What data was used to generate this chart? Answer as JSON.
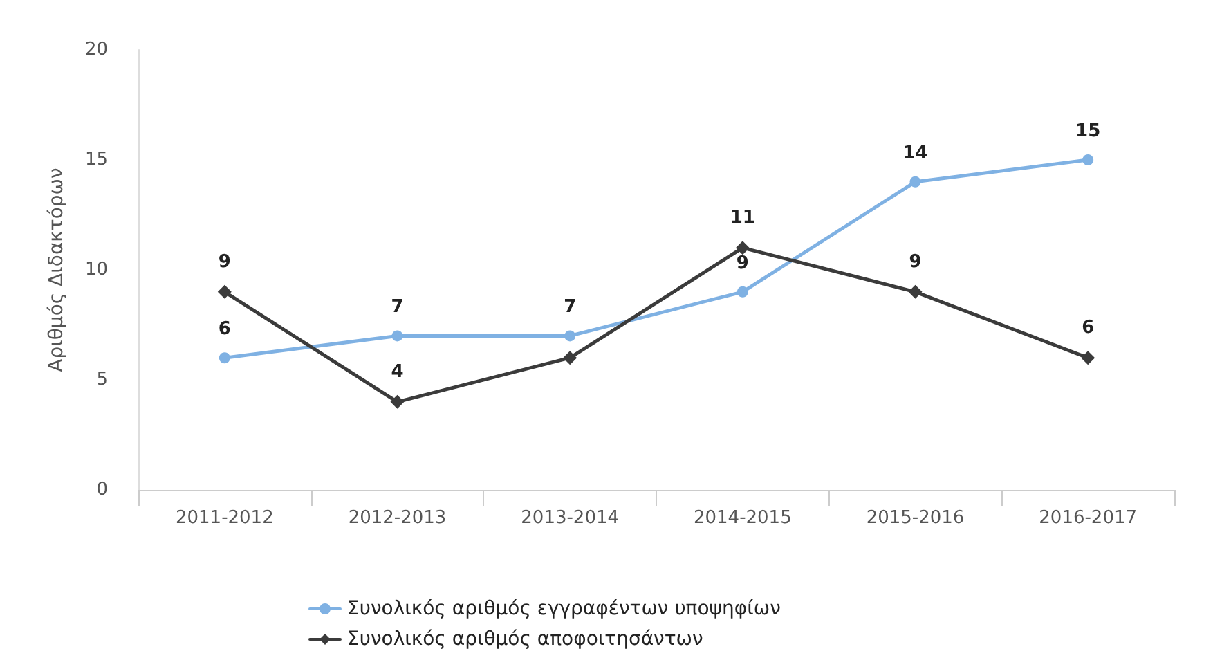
{
  "chart_data": {
    "type": "line",
    "ylabel": "Αριθμός Διδακτόρων",
    "categories": [
      "2011-2012",
      "2012-2013",
      "2013-2014",
      "2014-2015",
      "2015-2016",
      "2016-2017"
    ],
    "series": [
      {
        "name": "Συνολικός αριθμός εγγραφέντων υποψηφίων",
        "color": "#7fb1e3",
        "marker": "circle",
        "values": [
          6,
          7,
          7,
          9,
          14,
          15
        ],
        "value_labels": [
          "6",
          "7",
          "7",
          "9",
          "14",
          "15"
        ]
      },
      {
        "name": "Συνολικός αριθμός αποφοιτησάντων",
        "color": "#3b3b3b",
        "marker": "diamond",
        "values": [
          9,
          4,
          6,
          11,
          9,
          6
        ],
        "value_labels": [
          "9",
          "4",
          null,
          "11",
          "9",
          "6"
        ]
      }
    ],
    "ylim": [
      0,
      20
    ],
    "yticks": [
      0,
      5,
      10,
      15,
      20
    ],
    "grid": false,
    "legend": "bottom",
    "line_style": "solid"
  }
}
